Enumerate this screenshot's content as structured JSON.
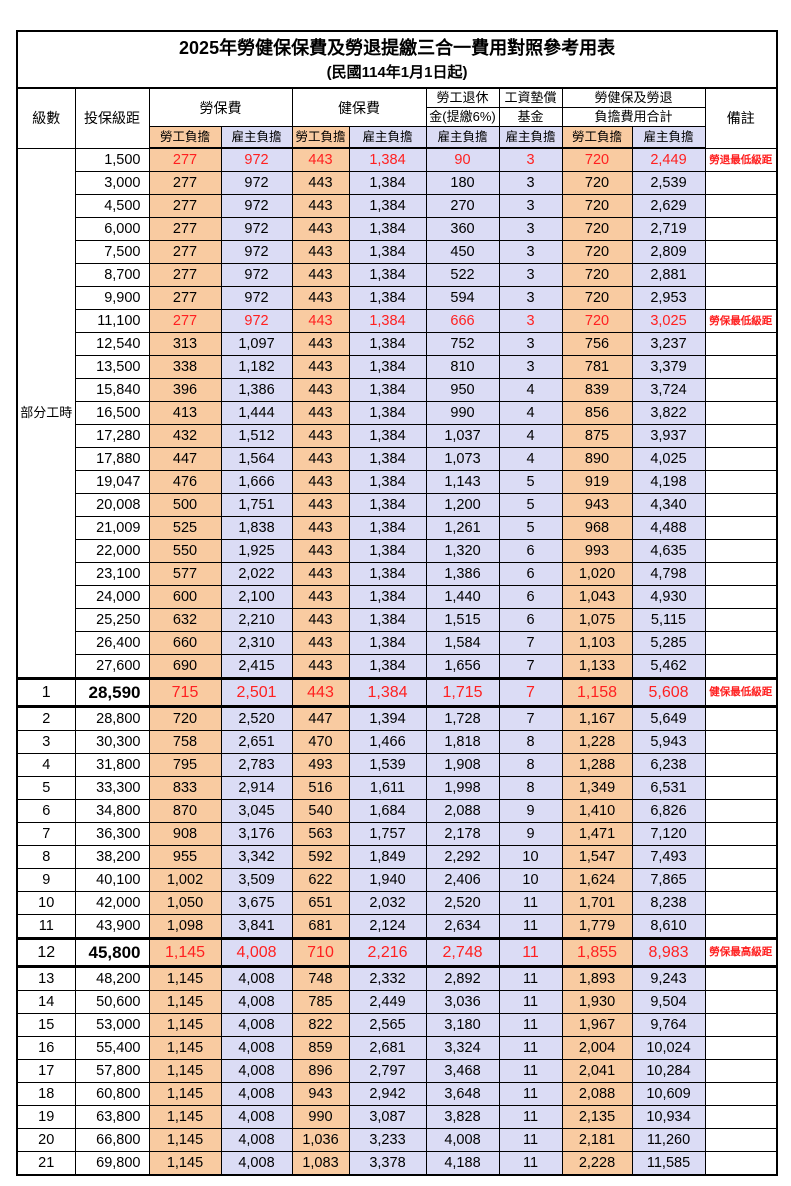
{
  "title": "2025年勞健保保費及勞退提繳三合一費用對照參考用表",
  "subtitle": "(民國114年1月1日起)",
  "colors": {
    "employee_fill": "#F9CBA1",
    "employer_fill": "#DBDCF5",
    "highlight_red": "#FF2020"
  },
  "header": {
    "level": "級數",
    "bracket": "投保級距",
    "labor_ins": "勞保費",
    "health_ins": "健保費",
    "pension_line1": "勞工退休",
    "pension_line2": "金(提繳6%)",
    "wage_fund_line1": "工資墊償",
    "wage_fund_line2": "基金",
    "total_line1": "勞健保及勞退",
    "total_line2": "負擔費用合計",
    "remarks": "備註",
    "employee_share": "勞工負擔",
    "employer_share": "雇主負擔"
  },
  "table": {
    "part_time_label": "部分工時",
    "value_columns": [
      "勞保費勞工負擔",
      "勞保費雇主負擔",
      "健保費勞工負擔",
      "健保費雇主負擔",
      "勞工退休金雇主負擔",
      "工資墊償基金雇主負擔",
      "合計勞工負擔",
      "合計雇主負擔"
    ],
    "rows": [
      {
        "bracket": "1,500",
        "v": [
          "277",
          "972",
          "443",
          "1,384",
          "90",
          "3",
          "720",
          "2,449"
        ],
        "note": "勞退最低級距",
        "red": true
      },
      {
        "bracket": "3,000",
        "v": [
          "277",
          "972",
          "443",
          "1,384",
          "180",
          "3",
          "720",
          "2,539"
        ]
      },
      {
        "bracket": "4,500",
        "v": [
          "277",
          "972",
          "443",
          "1,384",
          "270",
          "3",
          "720",
          "2,629"
        ]
      },
      {
        "bracket": "6,000",
        "v": [
          "277",
          "972",
          "443",
          "1,384",
          "360",
          "3",
          "720",
          "2,719"
        ]
      },
      {
        "bracket": "7,500",
        "v": [
          "277",
          "972",
          "443",
          "1,384",
          "450",
          "3",
          "720",
          "2,809"
        ]
      },
      {
        "bracket": "8,700",
        "v": [
          "277",
          "972",
          "443",
          "1,384",
          "522",
          "3",
          "720",
          "2,881"
        ]
      },
      {
        "bracket": "9,900",
        "v": [
          "277",
          "972",
          "443",
          "1,384",
          "594",
          "3",
          "720",
          "2,953"
        ]
      },
      {
        "bracket": "11,100",
        "v": [
          "277",
          "972",
          "443",
          "1,384",
          "666",
          "3",
          "720",
          "3,025"
        ],
        "note": "勞保最低級距",
        "red": true
      },
      {
        "bracket": "12,540",
        "v": [
          "313",
          "1,097",
          "443",
          "1,384",
          "752",
          "3",
          "756",
          "3,237"
        ]
      },
      {
        "bracket": "13,500",
        "v": [
          "338",
          "1,182",
          "443",
          "1,384",
          "810",
          "3",
          "781",
          "3,379"
        ]
      },
      {
        "bracket": "15,840",
        "v": [
          "396",
          "1,386",
          "443",
          "1,384",
          "950",
          "4",
          "839",
          "3,724"
        ]
      },
      {
        "bracket": "16,500",
        "v": [
          "413",
          "1,444",
          "443",
          "1,384",
          "990",
          "4",
          "856",
          "3,822"
        ]
      },
      {
        "bracket": "17,280",
        "v": [
          "432",
          "1,512",
          "443",
          "1,384",
          "1,037",
          "4",
          "875",
          "3,937"
        ]
      },
      {
        "bracket": "17,880",
        "v": [
          "447",
          "1,564",
          "443",
          "1,384",
          "1,073",
          "4",
          "890",
          "4,025"
        ]
      },
      {
        "bracket": "19,047",
        "v": [
          "476",
          "1,666",
          "443",
          "1,384",
          "1,143",
          "5",
          "919",
          "4,198"
        ]
      },
      {
        "bracket": "20,008",
        "v": [
          "500",
          "1,751",
          "443",
          "1,384",
          "1,200",
          "5",
          "943",
          "4,340"
        ]
      },
      {
        "bracket": "21,009",
        "v": [
          "525",
          "1,838",
          "443",
          "1,384",
          "1,261",
          "5",
          "968",
          "4,488"
        ]
      },
      {
        "bracket": "22,000",
        "v": [
          "550",
          "1,925",
          "443",
          "1,384",
          "1,320",
          "6",
          "993",
          "4,635"
        ]
      },
      {
        "bracket": "23,100",
        "v": [
          "577",
          "2,022",
          "443",
          "1,384",
          "1,386",
          "6",
          "1,020",
          "4,798"
        ]
      },
      {
        "bracket": "24,000",
        "v": [
          "600",
          "2,100",
          "443",
          "1,384",
          "1,440",
          "6",
          "1,043",
          "4,930"
        ]
      },
      {
        "bracket": "25,250",
        "v": [
          "632",
          "2,210",
          "443",
          "1,384",
          "1,515",
          "6",
          "1,075",
          "5,115"
        ]
      },
      {
        "bracket": "26,400",
        "v": [
          "660",
          "2,310",
          "443",
          "1,384",
          "1,584",
          "7",
          "1,103",
          "5,285"
        ]
      },
      {
        "bracket": "27,600",
        "v": [
          "690",
          "2,415",
          "443",
          "1,384",
          "1,656",
          "7",
          "1,133",
          "5,462"
        ]
      },
      {
        "level": "1",
        "bracket": "28,590",
        "v": [
          "715",
          "2,501",
          "443",
          "1,384",
          "1,715",
          "7",
          "1,158",
          "5,608"
        ],
        "note": "健保最低級距",
        "red": true,
        "big": true
      },
      {
        "level": "2",
        "bracket": "28,800",
        "v": [
          "720",
          "2,520",
          "447",
          "1,394",
          "1,728",
          "7",
          "1,167",
          "5,649"
        ]
      },
      {
        "level": "3",
        "bracket": "30,300",
        "v": [
          "758",
          "2,651",
          "470",
          "1,466",
          "1,818",
          "8",
          "1,228",
          "5,943"
        ]
      },
      {
        "level": "4",
        "bracket": "31,800",
        "v": [
          "795",
          "2,783",
          "493",
          "1,539",
          "1,908",
          "8",
          "1,288",
          "6,238"
        ]
      },
      {
        "level": "5",
        "bracket": "33,300",
        "v": [
          "833",
          "2,914",
          "516",
          "1,611",
          "1,998",
          "8",
          "1,349",
          "6,531"
        ]
      },
      {
        "level": "6",
        "bracket": "34,800",
        "v": [
          "870",
          "3,045",
          "540",
          "1,684",
          "2,088",
          "9",
          "1,410",
          "6,826"
        ]
      },
      {
        "level": "7",
        "bracket": "36,300",
        "v": [
          "908",
          "3,176",
          "563",
          "1,757",
          "2,178",
          "9",
          "1,471",
          "7,120"
        ]
      },
      {
        "level": "8",
        "bracket": "38,200",
        "v": [
          "955",
          "3,342",
          "592",
          "1,849",
          "2,292",
          "10",
          "1,547",
          "7,493"
        ]
      },
      {
        "level": "9",
        "bracket": "40,100",
        "v": [
          "1,002",
          "3,509",
          "622",
          "1,940",
          "2,406",
          "10",
          "1,624",
          "7,865"
        ]
      },
      {
        "level": "10",
        "bracket": "42,000",
        "v": [
          "1,050",
          "3,675",
          "651",
          "2,032",
          "2,520",
          "11",
          "1,701",
          "8,238"
        ]
      },
      {
        "level": "11",
        "bracket": "43,900",
        "v": [
          "1,098",
          "3,841",
          "681",
          "2,124",
          "2,634",
          "11",
          "1,779",
          "8,610"
        ]
      },
      {
        "level": "12",
        "bracket": "45,800",
        "v": [
          "1,145",
          "4,008",
          "710",
          "2,216",
          "2,748",
          "11",
          "1,855",
          "8,983"
        ],
        "note": "勞保最高級距",
        "red": true,
        "big": true
      },
      {
        "level": "13",
        "bracket": "48,200",
        "v": [
          "1,145",
          "4,008",
          "748",
          "2,332",
          "2,892",
          "11",
          "1,893",
          "9,243"
        ]
      },
      {
        "level": "14",
        "bracket": "50,600",
        "v": [
          "1,145",
          "4,008",
          "785",
          "2,449",
          "3,036",
          "11",
          "1,930",
          "9,504"
        ]
      },
      {
        "level": "15",
        "bracket": "53,000",
        "v": [
          "1,145",
          "4,008",
          "822",
          "2,565",
          "3,180",
          "11",
          "1,967",
          "9,764"
        ]
      },
      {
        "level": "16",
        "bracket": "55,400",
        "v": [
          "1,145",
          "4,008",
          "859",
          "2,681",
          "3,324",
          "11",
          "2,004",
          "10,024"
        ]
      },
      {
        "level": "17",
        "bracket": "57,800",
        "v": [
          "1,145",
          "4,008",
          "896",
          "2,797",
          "3,468",
          "11",
          "2,041",
          "10,284"
        ]
      },
      {
        "level": "18",
        "bracket": "60,800",
        "v": [
          "1,145",
          "4,008",
          "943",
          "2,942",
          "3,648",
          "11",
          "2,088",
          "10,609"
        ]
      },
      {
        "level": "19",
        "bracket": "63,800",
        "v": [
          "1,145",
          "4,008",
          "990",
          "3,087",
          "3,828",
          "11",
          "2,135",
          "10,934"
        ]
      },
      {
        "level": "20",
        "bracket": "66,800",
        "v": [
          "1,145",
          "4,008",
          "1,036",
          "3,233",
          "4,008",
          "11",
          "2,181",
          "11,260"
        ]
      },
      {
        "level": "21",
        "bracket": "69,800",
        "v": [
          "1,145",
          "4,008",
          "1,083",
          "3,378",
          "4,188",
          "11",
          "2,228",
          "11,585"
        ]
      }
    ]
  }
}
